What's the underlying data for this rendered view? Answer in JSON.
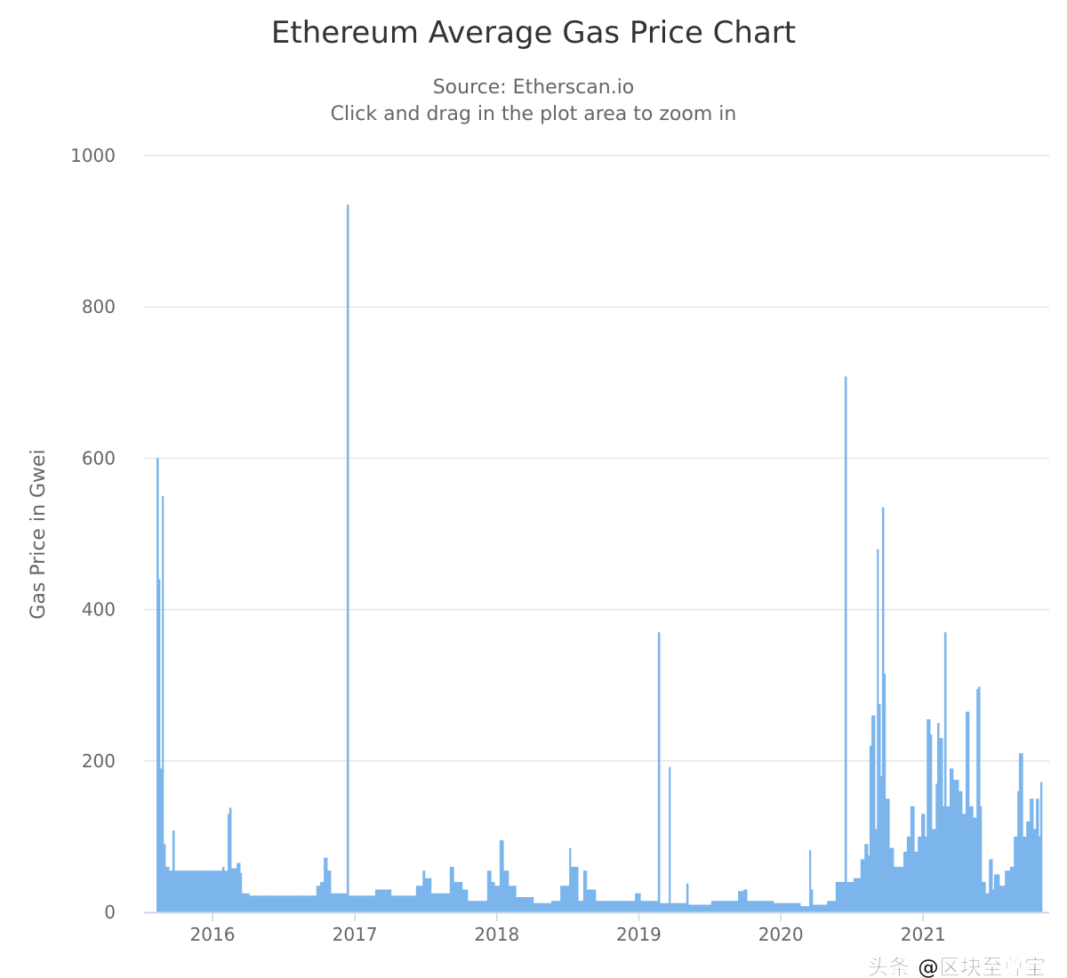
{
  "chart_data": {
    "type": "bar",
    "title": "Ethereum Average Gas Price Chart",
    "subtitle": "Source: Etherscan.io",
    "subtitle2": "Click and drag in the plot area to zoom in",
    "xlabel": "",
    "ylabel": "Gas Price in Gwei",
    "ylim": [
      0,
      1000
    ],
    "yticks": [
      "0",
      "200",
      "400",
      "600",
      "800",
      "1000"
    ],
    "xlim": [
      "2015-07-09",
      "2021-11-21"
    ],
    "xticks": [
      "2016",
      "2017",
      "2018",
      "2019",
      "2020",
      "2021"
    ],
    "grid": true,
    "legend": "none",
    "color": "#7cb5ec",
    "points": [
      [
        "2015-08-10",
        600
      ],
      [
        "2015-08-15",
        440
      ],
      [
        "2015-08-19",
        190
      ],
      [
        "2015-08-24",
        550
      ],
      [
        "2015-08-28",
        90
      ],
      [
        "2015-09-02",
        60
      ],
      [
        "2015-09-11",
        55
      ],
      [
        "2015-09-20",
        108
      ],
      [
        "2015-09-25",
        55
      ],
      [
        "2015-10-04",
        55
      ],
      [
        "2015-10-27",
        55
      ],
      [
        "2015-12-11",
        55
      ],
      [
        "2016-01-26",
        60
      ],
      [
        "2016-01-31",
        55
      ],
      [
        "2016-02-09",
        130
      ],
      [
        "2016-02-13",
        138
      ],
      [
        "2016-02-18",
        58
      ],
      [
        "2016-03-03",
        65
      ],
      [
        "2016-03-12",
        52
      ],
      [
        "2016-03-16",
        25
      ],
      [
        "2016-04-04",
        22
      ],
      [
        "2016-05-19",
        22
      ],
      [
        "2016-08-19",
        22
      ],
      [
        "2016-09-24",
        35
      ],
      [
        "2016-10-04",
        40
      ],
      [
        "2016-10-13",
        72
      ],
      [
        "2016-10-22",
        55
      ],
      [
        "2016-10-31",
        25
      ],
      [
        "2016-12-11",
        935
      ],
      [
        "2016-12-16",
        22
      ],
      [
        "2017-02-18",
        22
      ],
      [
        "2017-02-22",
        30
      ],
      [
        "2017-04-04",
        22
      ],
      [
        "2017-05-20",
        22
      ],
      [
        "2017-06-07",
        35
      ],
      [
        "2017-06-24",
        55
      ],
      [
        "2017-06-30",
        45
      ],
      [
        "2017-07-16",
        25
      ],
      [
        "2017-08-20",
        25
      ],
      [
        "2017-09-02",
        60
      ],
      [
        "2017-09-12",
        40
      ],
      [
        "2017-10-04",
        30
      ],
      [
        "2017-10-18",
        15
      ],
      [
        "2017-11-19",
        15
      ],
      [
        "2017-12-07",
        55
      ],
      [
        "2017-12-17",
        40
      ],
      [
        "2017-12-26",
        35
      ],
      [
        "2018-01-08",
        95
      ],
      [
        "2018-01-18",
        55
      ],
      [
        "2018-01-31",
        35
      ],
      [
        "2018-02-19",
        20
      ],
      [
        "2018-04-05",
        12
      ],
      [
        "2018-05-21",
        15
      ],
      [
        "2018-06-13",
        35
      ],
      [
        "2018-07-06",
        85
      ],
      [
        "2018-07-10",
        60
      ],
      [
        "2018-07-29",
        15
      ],
      [
        "2018-08-11",
        55
      ],
      [
        "2018-08-20",
        30
      ],
      [
        "2018-09-12",
        15
      ],
      [
        "2018-11-20",
        15
      ],
      [
        "2018-12-22",
        25
      ],
      [
        "2019-01-05",
        15
      ],
      [
        "2019-02-19",
        370
      ],
      [
        "2019-02-24",
        12
      ],
      [
        "2019-03-19",
        192
      ],
      [
        "2019-03-23",
        12
      ],
      [
        "2019-05-03",
        38
      ],
      [
        "2019-05-08",
        10
      ],
      [
        "2019-07-06",
        15
      ],
      [
        "2019-09-13",
        28
      ],
      [
        "2019-09-27",
        30
      ],
      [
        "2019-10-06",
        15
      ],
      [
        "2019-12-13",
        12
      ],
      [
        "2020-02-20",
        8
      ],
      [
        "2020-03-14",
        82
      ],
      [
        "2020-03-18",
        30
      ],
      [
        "2020-03-23",
        10
      ],
      [
        "2020-04-29",
        15
      ],
      [
        "2020-05-21",
        40
      ],
      [
        "2020-06-13",
        708
      ],
      [
        "2020-06-18",
        40
      ],
      [
        "2020-07-06",
        45
      ],
      [
        "2020-07-24",
        70
      ],
      [
        "2020-08-03",
        90
      ],
      [
        "2020-08-12",
        75
      ],
      [
        "2020-08-16",
        220
      ],
      [
        "2020-08-21",
        260
      ],
      [
        "2020-08-30",
        110
      ],
      [
        "2020-09-04",
        480
      ],
      [
        "2020-09-08",
        275
      ],
      [
        "2020-09-13",
        180
      ],
      [
        "2020-09-17",
        535
      ],
      [
        "2020-09-22",
        315
      ],
      [
        "2020-09-26",
        150
      ],
      [
        "2020-10-06",
        85
      ],
      [
        "2020-10-17",
        60
      ],
      [
        "2020-11-02",
        60
      ],
      [
        "2020-11-11",
        80
      ],
      [
        "2020-11-20",
        100
      ],
      [
        "2020-11-29",
        140
      ],
      [
        "2020-12-09",
        80
      ],
      [
        "2020-12-18",
        100
      ],
      [
        "2020-12-27",
        130
      ],
      [
        "2021-01-05",
        100
      ],
      [
        "2021-01-10",
        255
      ],
      [
        "2021-01-19",
        235
      ],
      [
        "2021-01-23",
        110
      ],
      [
        "2021-02-02",
        170
      ],
      [
        "2021-02-06",
        250
      ],
      [
        "2021-02-11",
        230
      ],
      [
        "2021-02-20",
        140
      ],
      [
        "2021-02-24",
        370
      ],
      [
        "2021-03-01",
        140
      ],
      [
        "2021-03-10",
        190
      ],
      [
        "2021-03-19",
        175
      ],
      [
        "2021-04-02",
        160
      ],
      [
        "2021-04-11",
        130
      ],
      [
        "2021-04-20",
        265
      ],
      [
        "2021-04-29",
        140
      ],
      [
        "2021-05-09",
        125
      ],
      [
        "2021-05-18",
        295
      ],
      [
        "2021-05-22",
        298
      ],
      [
        "2021-05-27",
        140
      ],
      [
        "2021-05-31",
        40
      ],
      [
        "2021-06-10",
        25
      ],
      [
        "2021-06-19",
        70
      ],
      [
        "2021-06-28",
        30
      ],
      [
        "2021-07-02",
        50
      ],
      [
        "2021-07-16",
        35
      ],
      [
        "2021-07-30",
        55
      ],
      [
        "2021-08-12",
        60
      ],
      [
        "2021-08-22",
        100
      ],
      [
        "2021-08-31",
        160
      ],
      [
        "2021-09-04",
        210
      ],
      [
        "2021-09-14",
        100
      ],
      [
        "2021-09-23",
        120
      ],
      [
        "2021-10-02",
        150
      ],
      [
        "2021-10-11",
        110
      ],
      [
        "2021-10-18",
        150
      ],
      [
        "2021-10-25",
        100
      ],
      [
        "2021-10-29",
        172
      ]
    ]
  },
  "watermark": "头条 @区块至尊宝"
}
